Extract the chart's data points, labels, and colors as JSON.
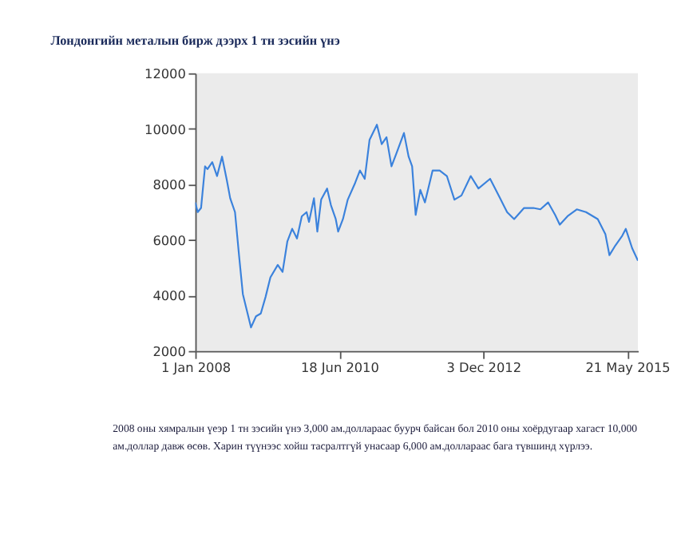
{
  "chart_data": {
    "type": "line",
    "title": "Лондонгийн металын бирж дээрх 1 тн зэсийн үнэ",
    "x": [
      "2008-01-01",
      "2008-01-16",
      "2008-02-06",
      "2008-03-02",
      "2008-03-17",
      "2008-04-16",
      "2008-05-16",
      "2008-06-16",
      "2008-07-16",
      "2008-08-06",
      "2008-09-05",
      "2008-09-30",
      "2008-10-24",
      "2008-11-14",
      "2008-12-14",
      "2009-01-14",
      "2009-02-13",
      "2009-03-15",
      "2009-04-14",
      "2009-05-30",
      "2009-06-29",
      "2009-07-29",
      "2009-08-28",
      "2009-09-27",
      "2009-10-27",
      "2009-11-26",
      "2009-12-11",
      "2010-01-11",
      "2010-02-01",
      "2010-02-25",
      "2010-04-03",
      "2010-04-27",
      "2010-05-27",
      "2010-06-11",
      "2010-07-11",
      "2010-08-10",
      "2010-09-25",
      "2010-10-25",
      "2010-11-24",
      "2010-12-24",
      "2011-02-08",
      "2011-03-10",
      "2011-04-09",
      "2011-05-10",
      "2011-06-09",
      "2011-07-27",
      "2011-08-25",
      "2011-09-16",
      "2011-10-08",
      "2011-11-06",
      "2011-12-05",
      "2012-01-22",
      "2012-03-06",
      "2012-04-20",
      "2012-06-06",
      "2012-07-20",
      "2012-09-16",
      "2012-11-03",
      "2013-01-15",
      "2013-03-18",
      "2013-05-01",
      "2013-06-14",
      "2013-08-15",
      "2013-10-12",
      "2013-11-25",
      "2014-01-12",
      "2014-02-25",
      "2014-03-26",
      "2014-05-13",
      "2014-07-10",
      "2014-09-06",
      "2014-11-18",
      "2015-01-05",
      "2015-01-30",
      "2015-03-08",
      "2015-04-20",
      "2015-05-12",
      "2015-06-21",
      "2015-07-27"
    ],
    "series": [
      {
        "color": "#3b82dc",
        "values": [
          7350,
          7000,
          7150,
          8650,
          8550,
          8800,
          8300,
          9000,
          8150,
          7500,
          7000,
          5450,
          4050,
          3550,
          2850,
          3250,
          3350,
          3950,
          4650,
          5100,
          4850,
          5950,
          6400,
          6050,
          6850,
          7000,
          6650,
          7500,
          6300,
          7450,
          7850,
          7250,
          6750,
          6300,
          6750,
          7450,
          8050,
          8500,
          8200,
          9600,
          10150,
          9450,
          9700,
          8650,
          9100,
          9850,
          9000,
          8650,
          6900,
          7800,
          7350,
          8500,
          8500,
          8300,
          7450,
          7600,
          8300,
          7850,
          8200,
          7500,
          7000,
          6750,
          7150,
          7150,
          7100,
          7350,
          6900,
          6550,
          6850,
          7100,
          7000,
          6750,
          6200,
          5450,
          5800,
          6150,
          6400,
          5700,
          5250
        ]
      }
    ],
    "xlim": [
      "2008-01-01",
      "2015-07-27"
    ],
    "xticks": [
      {
        "value": "2008-01-01",
        "label": "1 Jan 2008"
      },
      {
        "value": "2010-06-18",
        "label": "18 Jun 2010"
      },
      {
        "value": "2012-12-03",
        "label": "3 Dec 2012"
      },
      {
        "value": "2015-05-21",
        "label": "21 May 2015"
      }
    ],
    "ylim": [
      2000,
      12000
    ],
    "yticks": [
      2000,
      4000,
      6000,
      8000,
      10000,
      12000
    ],
    "grid": false,
    "marker": "none",
    "line_style": "solid",
    "annotations": [
      "2008 оны хямралын үеэр 1 тн зэсийн үнэ 3,000 ам.доллараас буурч байсан бол 2010 оны хоёрдугаар хагаст 10,000 ам.доллар давж өсөв. Харин түүнээс хойш тасралтгүй унасаар 6,000 ам.доллараас бага түвшинд хүрлээ."
    ]
  }
}
